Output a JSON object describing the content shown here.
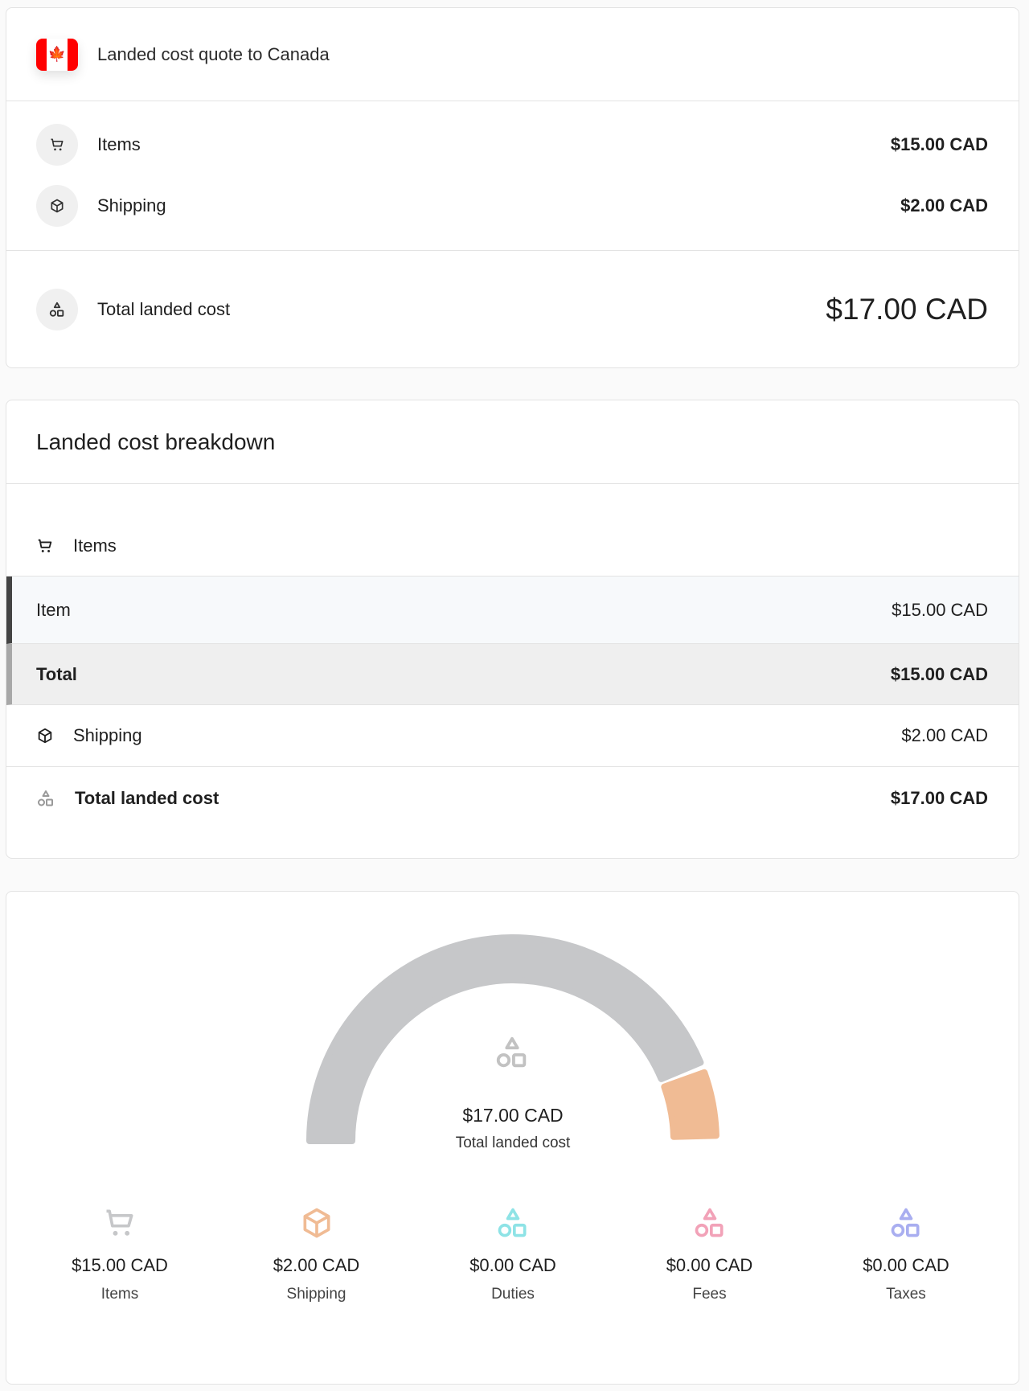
{
  "quote": {
    "title": "Landed cost quote to Canada",
    "items_label": "Items",
    "items_amount": "$15.00 CAD",
    "shipping_label": "Shipping",
    "shipping_amount": "$2.00 CAD",
    "total_label": "Total landed cost",
    "total_amount": "$17.00 CAD"
  },
  "breakdown": {
    "title": "Landed cost breakdown",
    "items_section": "Items",
    "item_label": "Item",
    "item_amount": "$15.00 CAD",
    "items_total_label": "Total",
    "items_total_amount": "$15.00 CAD",
    "shipping_label": "Shipping",
    "shipping_amount": "$2.00 CAD",
    "total_label": "Total landed cost",
    "total_amount": "$17.00 CAD"
  },
  "summary": {
    "total_amount": "$17.00 CAD",
    "total_label": "Total landed cost",
    "categories": [
      {
        "label": "Items",
        "amount": "$15.00 CAD",
        "value": 15,
        "color": "#c6c7c9",
        "icon": "cart-icon"
      },
      {
        "label": "Shipping",
        "amount": "$2.00 CAD",
        "value": 2,
        "color": "#f0bb94",
        "icon": "box-icon"
      },
      {
        "label": "Duties",
        "amount": "$0.00 CAD",
        "value": 0,
        "color": "#8ee3e6",
        "icon": "shapes-icon"
      },
      {
        "label": "Fees",
        "amount": "$0.00 CAD",
        "value": 0,
        "color": "#f2a2b8",
        "icon": "shapes-icon"
      },
      {
        "label": "Taxes",
        "amount": "$0.00 CAD",
        "value": 0,
        "color": "#a9aef0",
        "icon": "shapes-icon"
      }
    ]
  }
}
